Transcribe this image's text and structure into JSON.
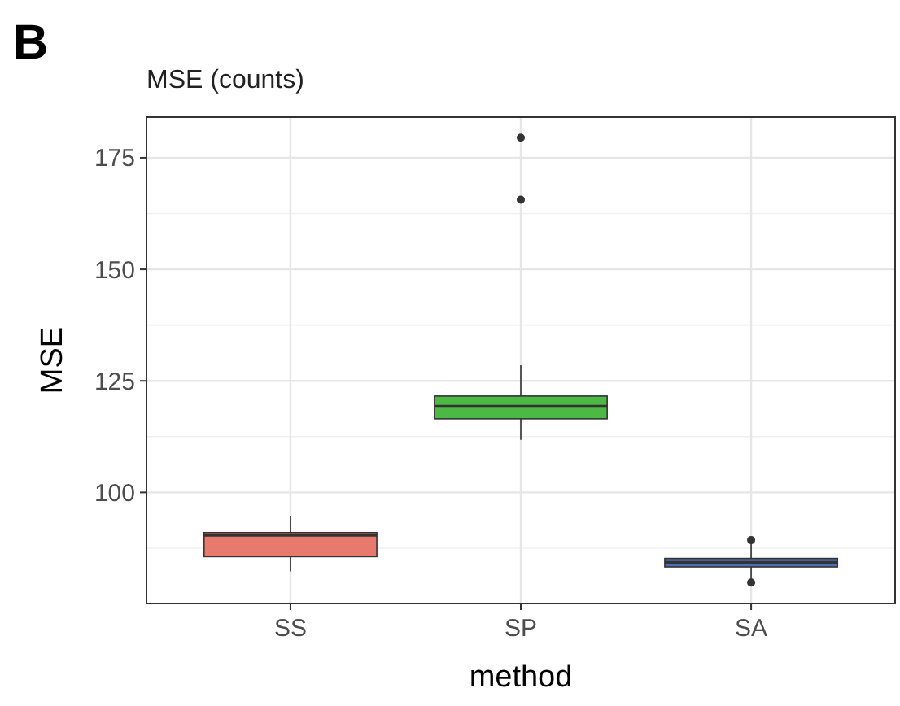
{
  "chart_data": {
    "type": "box",
    "title": "MSE (counts)",
    "annotations": [
      "B"
    ],
    "xlabel": "method",
    "ylabel": "MSE",
    "categories": [
      "SS",
      "SP",
      "SA"
    ],
    "colors": [
      "#e8796d",
      "#4cb944",
      "#4c6fb5"
    ],
    "boxes": [
      {
        "low": 82.3,
        "q1": 85.6,
        "median": 90.4,
        "q3": 91.0,
        "high": 94.7
      },
      {
        "low": 111.8,
        "q1": 116.5,
        "median": 119.3,
        "q3": 121.6,
        "high": 128.5,
        "outliers": [
          165.6,
          179.5
        ]
      },
      {
        "low": 79.8,
        "q1": 83.3,
        "median": 84.3,
        "q3": 85.2,
        "high": 89.3,
        "outliers": [
          79.8,
          89.3
        ]
      }
    ],
    "ylim": [
      75.1,
      184.1
    ],
    "yticks": [
      100,
      125,
      150,
      175
    ],
    "grid": true
  }
}
